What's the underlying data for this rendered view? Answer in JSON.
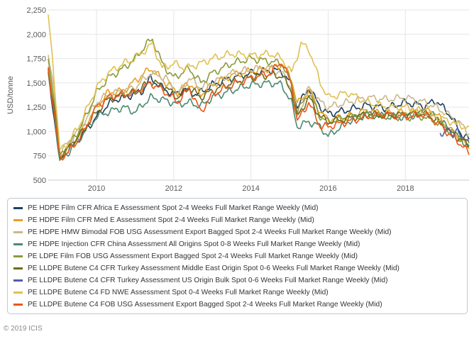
{
  "chart_data": {
    "type": "line",
    "title": "",
    "xlabel": "",
    "ylabel": "USD/tonne",
    "ylim": [
      500,
      2250
    ],
    "xlim": [
      2008.75,
      2019.65
    ],
    "yticks": [
      500,
      750,
      1000,
      1250,
      1500,
      1750,
      2000,
      2250
    ],
    "ytick_labels": [
      "500",
      "750",
      "1,000",
      "1,250",
      "1,500",
      "1,750",
      "2,000",
      "2,250"
    ],
    "xticks": [
      2010,
      2012,
      2014,
      2016,
      2018
    ],
    "xtick_labels": [
      "2010",
      "2012",
      "2014",
      "2016",
      "2018"
    ],
    "legend_position": "bottom",
    "series": [
      {
        "name": "PE HDPE Film CFR Africa E Assessment Spot 2-4 Weeks Full Market Range Weekly (Mid)",
        "color": "#1f3f5f",
        "points": [
          [
            2008.75,
            1600
          ],
          [
            2008.9,
            1150
          ],
          [
            2009.05,
            720
          ],
          [
            2009.3,
            830
          ],
          [
            2009.6,
            950
          ],
          [
            2010.0,
            1150
          ],
          [
            2010.4,
            1320
          ],
          [
            2010.8,
            1360
          ],
          [
            2011.2,
            1420
          ],
          [
            2011.4,
            1550
          ],
          [
            2011.7,
            1450
          ],
          [
            2012.0,
            1380
          ],
          [
            2012.3,
            1430
          ],
          [
            2012.6,
            1380
          ],
          [
            2013.0,
            1480
          ],
          [
            2013.5,
            1550
          ],
          [
            2014.0,
            1600
          ],
          [
            2014.5,
            1630
          ],
          [
            2014.8,
            1620
          ],
          [
            2015.05,
            1480
          ],
          [
            2015.2,
            1250
          ],
          [
            2015.5,
            1450
          ],
          [
            2015.8,
            1250
          ],
          [
            2016.0,
            1180
          ],
          [
            2016.5,
            1220
          ],
          [
            2017.0,
            1270
          ],
          [
            2017.5,
            1240
          ],
          [
            2018.0,
            1300
          ],
          [
            2018.5,
            1260
          ],
          [
            2018.8,
            1320
          ],
          [
            2019.2,
            1150
          ],
          [
            2019.4,
            1000
          ],
          [
            2019.65,
            920
          ]
        ]
      },
      {
        "name": "PE HDPE Film CFR Med E Assessment Spot 2-4 Weeks Full Market Range Weekly (Mid)",
        "color": "#e8a020",
        "points": [
          [
            2008.75,
            1680
          ],
          [
            2008.9,
            1250
          ],
          [
            2009.05,
            750
          ],
          [
            2009.3,
            850
          ],
          [
            2009.6,
            1000
          ],
          [
            2010.0,
            1250
          ],
          [
            2010.3,
            1400
          ],
          [
            2010.7,
            1420
          ],
          [
            2011.0,
            1520
          ],
          [
            2011.4,
            1650
          ],
          [
            2011.8,
            1500
          ],
          [
            2012.1,
            1400
          ],
          [
            2012.4,
            1500
          ],
          [
            2012.7,
            1380
          ],
          [
            2013.0,
            1480
          ],
          [
            2013.5,
            1580
          ],
          [
            2014.0,
            1620
          ],
          [
            2014.5,
            1650
          ],
          [
            2014.8,
            1690
          ],
          [
            2015.05,
            1550
          ],
          [
            2015.2,
            1280
          ],
          [
            2015.5,
            1420
          ],
          [
            2015.8,
            1200
          ],
          [
            2016.0,
            1120
          ],
          [
            2016.5,
            1150
          ],
          [
            2017.0,
            1220
          ],
          [
            2017.5,
            1180
          ],
          [
            2018.0,
            1200
          ],
          [
            2018.5,
            1220
          ],
          [
            2018.8,
            1180
          ],
          [
            2019.2,
            1000
          ],
          [
            2019.5,
            900
          ],
          [
            2019.65,
            820
          ]
        ]
      },
      {
        "name": "PE HDPE HMW Bimodal FOB USG Assessment Export Bagged Spot 2-4 Weeks Full Market Range Weekly (Mid)",
        "color": "#c9b88a",
        "points": [
          [
            2008.75,
            1800
          ],
          [
            2008.9,
            1400
          ],
          [
            2009.05,
            780
          ],
          [
            2009.3,
            900
          ],
          [
            2009.6,
            1050
          ],
          [
            2010.0,
            1300
          ],
          [
            2010.3,
            1380
          ],
          [
            2010.7,
            1420
          ],
          [
            2011.0,
            1450
          ],
          [
            2011.4,
            1600
          ],
          [
            2011.8,
            1550
          ],
          [
            2012.1,
            1380
          ],
          [
            2012.4,
            1550
          ],
          [
            2012.7,
            1450
          ],
          [
            2013.0,
            1500
          ],
          [
            2013.5,
            1600
          ],
          [
            2014.0,
            1640
          ],
          [
            2014.5,
            1650
          ],
          [
            2014.8,
            1600
          ],
          [
            2015.05,
            1450
          ],
          [
            2015.2,
            1150
          ],
          [
            2015.5,
            1450
          ],
          [
            2015.8,
            1300
          ],
          [
            2016.0,
            1250
          ],
          [
            2016.5,
            1300
          ],
          [
            2017.0,
            1350
          ],
          [
            2017.5,
            1330
          ],
          [
            2018.0,
            1350
          ],
          [
            2018.5,
            1300
          ],
          [
            2018.8,
            1250
          ],
          [
            2019.2,
            1150
          ],
          [
            2019.5,
            1050
          ],
          [
            2019.65,
            980
          ]
        ]
      },
      {
        "name": "PE HDPE Injection CFR China Assessment All Origins Spot 0-8 Weeks Full Market Range Weekly (Mid)",
        "color": "#4b8a6e",
        "points": [
          [
            2008.75,
            1600
          ],
          [
            2008.9,
            1200
          ],
          [
            2009.05,
            680
          ],
          [
            2009.3,
            800
          ],
          [
            2009.6,
            950
          ],
          [
            2010.0,
            1150
          ],
          [
            2010.3,
            1200
          ],
          [
            2010.7,
            1250
          ],
          [
            2011.0,
            1200
          ],
          [
            2011.4,
            1350
          ],
          [
            2011.8,
            1320
          ],
          [
            2012.1,
            1280
          ],
          [
            2012.4,
            1300
          ],
          [
            2012.7,
            1260
          ],
          [
            2013.0,
            1350
          ],
          [
            2013.5,
            1420
          ],
          [
            2014.0,
            1480
          ],
          [
            2014.5,
            1500
          ],
          [
            2014.8,
            1480
          ],
          [
            2015.05,
            1300
          ],
          [
            2015.2,
            1050
          ],
          [
            2015.5,
            1100
          ],
          [
            2015.8,
            1050
          ],
          [
            2016.0,
            950
          ],
          [
            2016.5,
            1100
          ],
          [
            2017.0,
            1180
          ],
          [
            2017.5,
            1150
          ],
          [
            2018.0,
            1150
          ],
          [
            2018.5,
            1200
          ],
          [
            2018.8,
            1150
          ],
          [
            2019.2,
            1000
          ],
          [
            2019.5,
            900
          ],
          [
            2019.65,
            850
          ]
        ]
      },
      {
        "name": "PE LDPE Film FOB USG Assessment Export Bagged Spot 2-4 Weeks Full Market Range Weekly (Mid)",
        "color": "#8a9a3a",
        "points": [
          [
            2008.75,
            1750
          ],
          [
            2008.9,
            1350
          ],
          [
            2009.05,
            760
          ],
          [
            2009.3,
            870
          ],
          [
            2009.6,
            1050
          ],
          [
            2010.0,
            1400
          ],
          [
            2010.3,
            1550
          ],
          [
            2010.7,
            1650
          ],
          [
            2011.0,
            1750
          ],
          [
            2011.3,
            1900
          ],
          [
            2011.45,
            1950
          ],
          [
            2011.7,
            1700
          ],
          [
            2012.0,
            1550
          ],
          [
            2012.4,
            1650
          ],
          [
            2012.7,
            1500
          ],
          [
            2013.0,
            1600
          ],
          [
            2013.5,
            1700
          ],
          [
            2014.0,
            1750
          ],
          [
            2014.5,
            1720
          ],
          [
            2014.8,
            1700
          ],
          [
            2015.05,
            1500
          ],
          [
            2015.2,
            1200
          ],
          [
            2015.5,
            1400
          ],
          [
            2015.8,
            1150
          ],
          [
            2016.0,
            1100
          ],
          [
            2016.5,
            1150
          ],
          [
            2017.0,
            1180
          ],
          [
            2017.5,
            1150
          ],
          [
            2018.0,
            1150
          ],
          [
            2018.5,
            1150
          ],
          [
            2018.8,
            1100
          ],
          [
            2019.2,
            1000
          ],
          [
            2019.5,
            920
          ],
          [
            2019.65,
            880
          ]
        ]
      },
      {
        "name": "PE LLDPE Butene C4 CFR Turkey Assessment Middle East Origin Spot 0-6 Weeks Full Market Range Weekly (Mid)",
        "color": "#6b6b1a",
        "points": [
          [
            2008.75,
            1620
          ],
          [
            2008.9,
            1220
          ],
          [
            2009.05,
            740
          ],
          [
            2009.3,
            840
          ],
          [
            2009.6,
            980
          ],
          [
            2010.0,
            1200
          ],
          [
            2010.3,
            1330
          ],
          [
            2010.7,
            1380
          ],
          [
            2011.0,
            1400
          ],
          [
            2011.4,
            1520
          ],
          [
            2011.8,
            1450
          ],
          [
            2012.1,
            1350
          ],
          [
            2012.4,
            1450
          ],
          [
            2012.7,
            1350
          ],
          [
            2013.0,
            1420
          ],
          [
            2013.5,
            1500
          ],
          [
            2014.0,
            1560
          ],
          [
            2014.5,
            1580
          ],
          [
            2014.8,
            1570
          ],
          [
            2015.05,
            1420
          ],
          [
            2015.2,
            1150
          ],
          [
            2015.5,
            1350
          ],
          [
            2015.8,
            1150
          ],
          [
            2016.0,
            1100
          ],
          [
            2016.5,
            1130
          ],
          [
            2017.0,
            1180
          ],
          [
            2017.5,
            1160
          ],
          [
            2018.0,
            1180
          ],
          [
            2018.5,
            1180
          ],
          [
            2018.8,
            1120
          ],
          [
            2019.2,
            980
          ],
          [
            2019.5,
            900
          ],
          [
            2019.65,
            850
          ]
        ]
      },
      {
        "name": "PE LLDPE Butene C4 CFR Turkey Assessment US Origin Bulk Spot 0-6 Weeks Full Market Range Weekly (Mid)",
        "color": "#4a5fae",
        "points": [
          [
            2018.9,
            1000
          ],
          [
            2019.0,
            980
          ],
          [
            2019.1,
            1020
          ],
          [
            2019.2,
            960
          ],
          [
            2019.35,
            1030
          ],
          [
            2019.45,
            900
          ],
          [
            2019.55,
            950
          ],
          [
            2019.65,
            900
          ]
        ]
      },
      {
        "name": "PE LLDPE Butene C4 FD NWE Assessment Spot 0-4 Weeks Full Market Range Weekly (Mid)",
        "color": "#e0c050",
        "points": [
          [
            2008.75,
            2180
          ],
          [
            2008.85,
            1800
          ],
          [
            2008.95,
            1300
          ],
          [
            2009.05,
            800
          ],
          [
            2009.3,
            900
          ],
          [
            2009.6,
            1100
          ],
          [
            2010.0,
            1450
          ],
          [
            2010.3,
            1600
          ],
          [
            2010.7,
            1700
          ],
          [
            2011.0,
            1750
          ],
          [
            2011.3,
            1850
          ],
          [
            2011.45,
            1900
          ],
          [
            2011.7,
            1650
          ],
          [
            2012.0,
            1700
          ],
          [
            2012.3,
            1650
          ],
          [
            2012.7,
            1700
          ],
          [
            2013.0,
            1750
          ],
          [
            2013.5,
            1800
          ],
          [
            2014.0,
            1780
          ],
          [
            2014.5,
            1800
          ],
          [
            2014.8,
            1750
          ],
          [
            2015.05,
            1600
          ],
          [
            2015.3,
            1900
          ],
          [
            2015.5,
            1850
          ],
          [
            2015.8,
            1500
          ],
          [
            2016.0,
            1350
          ],
          [
            2016.5,
            1400
          ],
          [
            2017.0,
            1300
          ],
          [
            2017.5,
            1250
          ],
          [
            2018.0,
            1250
          ],
          [
            2018.5,
            1200
          ],
          [
            2018.8,
            1150
          ],
          [
            2019.2,
            1100
          ],
          [
            2019.5,
            1050
          ],
          [
            2019.65,
            1050
          ]
        ]
      },
      {
        "name": "PE LLDPE Butene C4 FOB USG Assessment Export Bagged Spot 2-4 Weeks Full Market Range Weekly (Mid)",
        "color": "#e8561a",
        "points": [
          [
            2008.75,
            1650
          ],
          [
            2008.9,
            1200
          ],
          [
            2009.05,
            720
          ],
          [
            2009.3,
            800
          ],
          [
            2009.6,
            950
          ],
          [
            2010.0,
            1250
          ],
          [
            2010.3,
            1350
          ],
          [
            2010.7,
            1380
          ],
          [
            2011.0,
            1400
          ],
          [
            2011.4,
            1500
          ],
          [
            2011.8,
            1400
          ],
          [
            2012.1,
            1300
          ],
          [
            2012.4,
            1450
          ],
          [
            2012.7,
            1200
          ],
          [
            2013.0,
            1380
          ],
          [
            2013.5,
            1480
          ],
          [
            2014.0,
            1550
          ],
          [
            2014.5,
            1600
          ],
          [
            2014.8,
            1720
          ],
          [
            2015.05,
            1480
          ],
          [
            2015.2,
            1100
          ],
          [
            2015.5,
            1300
          ],
          [
            2015.8,
            1050
          ],
          [
            2016.0,
            1050
          ],
          [
            2016.5,
            1100
          ],
          [
            2017.0,
            1150
          ],
          [
            2017.5,
            1180
          ],
          [
            2018.0,
            1150
          ],
          [
            2018.5,
            1180
          ],
          [
            2018.8,
            1100
          ],
          [
            2019.2,
            950
          ],
          [
            2019.5,
            850
          ],
          [
            2019.65,
            760
          ]
        ]
      }
    ]
  },
  "copyright": "© 2019 ICIS"
}
